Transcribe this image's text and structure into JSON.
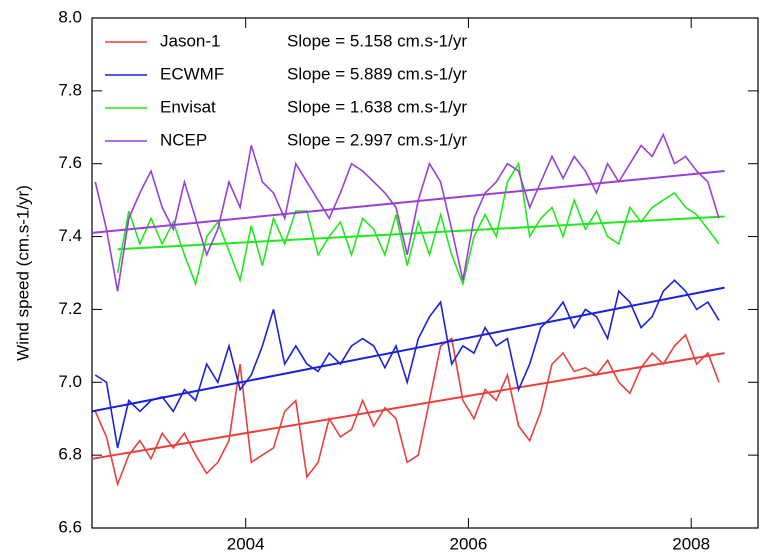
{
  "chart_data": {
    "type": "line",
    "y_label": "Wind speed (cm.s-1/yr)",
    "x": [
      2002.65,
      2002.75,
      2002.85,
      2002.95,
      2003.05,
      2003.15,
      2003.25,
      2003.35,
      2003.45,
      2003.55,
      2003.65,
      2003.75,
      2003.85,
      2003.95,
      2004.05,
      2004.15,
      2004.25,
      2004.35,
      2004.45,
      2004.55,
      2004.65,
      2004.75,
      2004.85,
      2004.95,
      2005.05,
      2005.15,
      2005.25,
      2005.35,
      2005.45,
      2005.55,
      2005.65,
      2005.75,
      2005.85,
      2005.95,
      2006.05,
      2006.15,
      2006.25,
      2006.35,
      2006.45,
      2006.55,
      2006.65,
      2006.75,
      2006.85,
      2006.95,
      2007.05,
      2007.15,
      2007.25,
      2007.35,
      2007.45,
      2007.55,
      2007.65,
      2007.75,
      2007.85,
      2007.95,
      2008.05,
      2008.15,
      2008.25
    ],
    "series": [
      {
        "name": "Jason-1",
        "color": "#e8413c",
        "slope_label": "Slope = 5.158 cm.s-1/yr",
        "values": [
          6.92,
          6.85,
          6.72,
          6.8,
          6.84,
          6.79,
          6.86,
          6.82,
          6.86,
          6.8,
          6.75,
          6.78,
          6.84,
          7.05,
          6.78,
          6.8,
          6.82,
          6.92,
          6.95,
          6.74,
          6.78,
          6.9,
          6.85,
          6.87,
          6.95,
          6.88,
          6.93,
          6.9,
          6.78,
          6.8,
          6.95,
          7.1,
          7.12,
          6.95,
          6.9,
          6.98,
          6.95,
          7.02,
          6.88,
          6.84,
          6.92,
          7.05,
          7.08,
          7.03,
          7.04,
          7.02,
          7.06,
          7.0,
          6.97,
          7.04,
          7.08,
          7.05,
          7.1,
          7.13,
          7.05,
          7.08,
          7.0
        ],
        "trend": {
          "x": [
            2002.62,
            2008.3
          ],
          "values": [
            6.79,
            7.08
          ]
        }
      },
      {
        "name": "ECWMF",
        "color": "#1c22d6",
        "slope_label": "Slope = 5.889 cm.s-1/yr",
        "values": [
          7.02,
          7.0,
          6.82,
          6.95,
          6.92,
          6.95,
          6.96,
          6.92,
          6.98,
          6.95,
          7.05,
          7.0,
          7.1,
          6.98,
          7.02,
          7.1,
          7.2,
          7.05,
          7.1,
          7.05,
          7.03,
          7.08,
          7.05,
          7.1,
          7.12,
          7.1,
          7.04,
          7.1,
          7.0,
          7.12,
          7.18,
          7.22,
          7.05,
          7.1,
          7.08,
          7.15,
          7.1,
          7.12,
          6.98,
          7.05,
          7.15,
          7.18,
          7.22,
          7.15,
          7.2,
          7.18,
          7.12,
          7.25,
          7.22,
          7.15,
          7.18,
          7.25,
          7.28,
          7.25,
          7.2,
          7.22,
          7.17
        ],
        "trend": {
          "x": [
            2002.62,
            2008.3
          ],
          "values": [
            6.92,
            7.26
          ]
        }
      },
      {
        "name": "Envisat",
        "color": "#22e81e",
        "slope_label": "Slope = 1.638 cm.s-1/yr",
        "values": [
          null,
          null,
          7.3,
          7.47,
          7.38,
          7.45,
          7.38,
          7.44,
          7.35,
          7.27,
          7.4,
          7.44,
          7.36,
          7.28,
          7.43,
          7.32,
          7.45,
          7.38,
          7.47,
          7.47,
          7.35,
          7.4,
          7.44,
          7.35,
          7.45,
          7.42,
          7.35,
          7.46,
          7.32,
          7.44,
          7.35,
          7.46,
          7.35,
          7.27,
          7.4,
          7.46,
          7.4,
          7.55,
          7.6,
          7.4,
          7.45,
          7.48,
          7.4,
          7.5,
          7.42,
          7.47,
          7.4,
          7.38,
          7.48,
          7.44,
          7.48,
          7.5,
          7.52,
          7.48,
          7.46,
          7.42,
          7.38
        ],
        "trend": {
          "x": [
            2002.85,
            2008.3
          ],
          "values": [
            7.365,
            7.455
          ]
        }
      },
      {
        "name": "NCEP",
        "color": "#9a3fd6",
        "slope_label": "Slope = 2.997 cm.s-1/yr",
        "values": [
          7.55,
          7.42,
          7.25,
          7.45,
          7.52,
          7.58,
          7.48,
          7.42,
          7.55,
          7.45,
          7.35,
          7.42,
          7.55,
          7.48,
          7.65,
          7.55,
          7.52,
          7.45,
          7.6,
          7.55,
          7.5,
          7.45,
          7.52,
          7.6,
          7.58,
          7.55,
          7.52,
          7.48,
          7.35,
          7.5,
          7.6,
          7.55,
          7.42,
          7.28,
          7.45,
          7.52,
          7.55,
          7.6,
          7.58,
          7.48,
          7.55,
          7.62,
          7.56,
          7.62,
          7.58,
          7.52,
          7.6,
          7.55,
          7.6,
          7.65,
          7.62,
          7.68,
          7.6,
          7.62,
          7.58,
          7.55,
          7.45
        ],
        "trend": {
          "x": [
            2002.62,
            2008.3
          ],
          "values": [
            7.41,
            7.58
          ]
        }
      }
    ],
    "xlim": [
      2002.62,
      2008.6
    ],
    "xticks": [
      2004,
      2006,
      2008
    ],
    "ylim": [
      6.6,
      8.0
    ],
    "yticks": [
      {
        "value": 6.6,
        "label": "6.6"
      },
      {
        "value": 6.8,
        "label": "6.8"
      },
      {
        "value": 7.0,
        "label": "7.0"
      },
      {
        "value": 7.2,
        "label": "7.2"
      },
      {
        "value": 7.4,
        "label": "7.4"
      },
      {
        "value": 7.6,
        "label": "7.6"
      },
      {
        "value": 7.8,
        "label": "7.8"
      },
      {
        "value": 8.0,
        "label": "8.0"
      }
    ],
    "legend": "upper-left",
    "grid": false
  }
}
